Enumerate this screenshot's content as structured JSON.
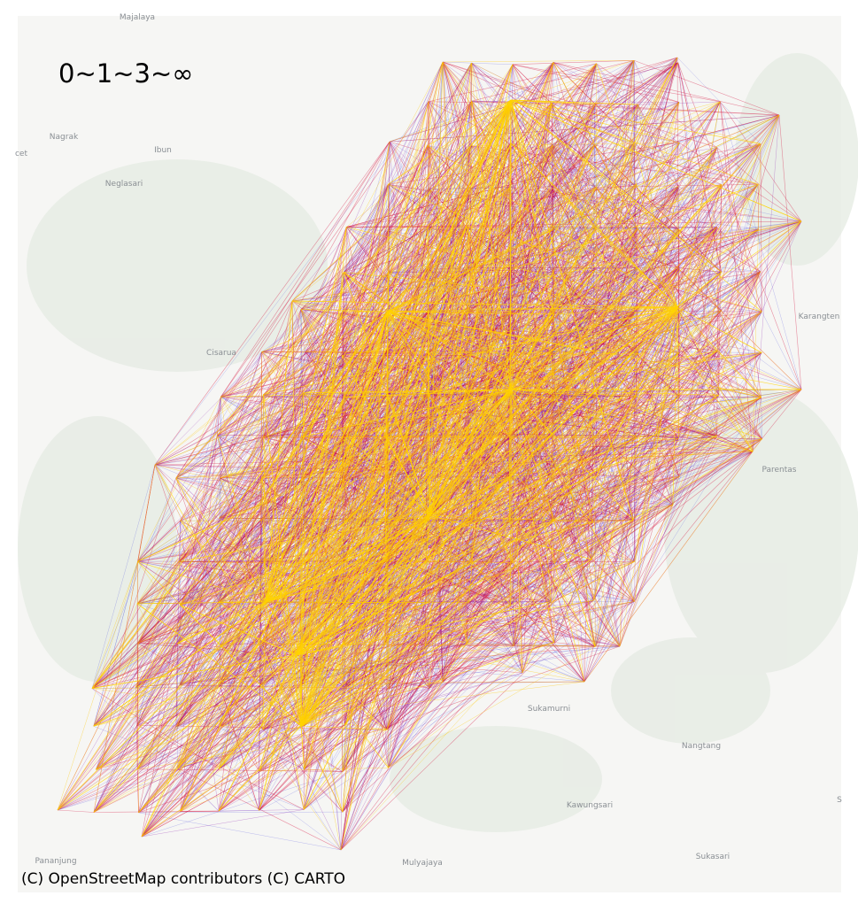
{
  "map": {
    "title": "0~1~3~∞",
    "attribution": "(C) OpenStreetMap contributors (C) CARTO",
    "places": [
      "Majalaya",
      "Nagrak",
      "Ibun",
      "cet",
      "Neglasari",
      "Cisarua",
      "Karangten",
      "Parentas",
      "Sukamurni",
      "Nangtang",
      "Kawungsari",
      "Sukasari",
      "Pananjung",
      "Mulyajaya",
      "S"
    ]
  }
}
